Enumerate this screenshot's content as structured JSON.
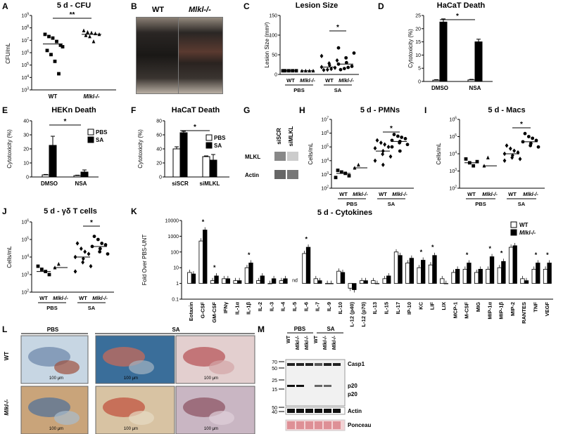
{
  "labels": {
    "A": "A",
    "B": "B",
    "C": "C",
    "D": "D",
    "E": "E",
    "F": "F",
    "G": "G",
    "H": "H",
    "I": "I",
    "J": "J",
    "K": "K",
    "L": "L",
    "M": "M"
  },
  "panelA": {
    "title": "5 d - CFU",
    "ylabel": "CFU/mL",
    "xticks": [
      "WT",
      "Mlkl-/-"
    ],
    "signif": "**",
    "yticks": [
      "10^3",
      "10^4",
      "10^5",
      "10^6",
      "10^7",
      "10^8",
      "10^9"
    ],
    "chart_data": {
      "type": "scatter",
      "yscale": "log",
      "ylim": [
        1000,
        1000000000
      ],
      "series": [
        {
          "name": "WT",
          "values": [
            30000000,
            20000000,
            15000000,
            8000000,
            4000000,
            1500000,
            700000,
            200000,
            20000,
            3000000
          ]
        },
        {
          "name": "Mlkl-/-",
          "values": [
            60000000,
            45000000,
            40000000,
            35000000,
            30000000,
            25000000,
            20000000,
            8000000
          ]
        }
      ],
      "medians": [
        5000000,
        30000000
      ]
    }
  },
  "panelB": {
    "labels": [
      "WT",
      "Mlkl-/-"
    ]
  },
  "panelC": {
    "title": "Lesion Size",
    "ylabel": "Lesion Size (mm²)",
    "yticks": [
      "0",
      "50",
      "100",
      "150"
    ],
    "xticks": [
      "WT",
      "Mlkl-/-",
      "WT",
      "Mlkl-/-"
    ],
    "groups": [
      "PBS",
      "SA"
    ],
    "signif": "*",
    "chart_data": {
      "type": "scatter",
      "ylim": [
        -10,
        150
      ],
      "series": [
        {
          "name": "PBS WT",
          "values": [
            0,
            0,
            0,
            0,
            0
          ]
        },
        {
          "name": "PBS Mlkl-/-",
          "values": [
            0,
            0,
            0,
            0
          ]
        },
        {
          "name": "SA WT",
          "values": [
            2,
            3,
            5,
            8,
            10,
            15,
            20,
            28,
            40
          ]
        },
        {
          "name": "SA Mlkl-/-",
          "values": [
            3,
            6,
            9,
            12,
            18,
            22,
            35,
            48,
            62
          ]
        }
      ]
    }
  },
  "panelD": {
    "title": "HaCaT Death",
    "ylabel": "Cytotoxicity (%)",
    "yticks": [
      "0",
      "5",
      "10",
      "15",
      "20",
      "25"
    ],
    "xticks": [
      "DMSO",
      "NSA"
    ],
    "signif": "*",
    "chart_data": {
      "type": "bar",
      "categories": [
        "DMSO",
        "NSA"
      ],
      "series": [
        {
          "name": "PBS",
          "values": [
            0.5,
            0.6
          ],
          "errors": [
            0.2,
            0.2
          ]
        },
        {
          "name": "SA",
          "values": [
            22.5,
            15
          ],
          "errors": [
            1.2,
            1.0
          ]
        }
      ],
      "ylim": [
        0,
        25
      ]
    }
  },
  "panelE": {
    "title": "HEKn Death",
    "ylabel": "Cytotoxicity (%)",
    "yticks": [
      "0",
      "10",
      "20",
      "30",
      "40"
    ],
    "xticks": [
      "DMSO",
      "NSA"
    ],
    "signif": "*",
    "legend": [
      "PBS",
      "SA"
    ],
    "chart_data": {
      "type": "bar",
      "categories": [
        "DMSO",
        "NSA"
      ],
      "series": [
        {
          "name": "PBS",
          "values": [
            1.5,
            1
          ],
          "errors": [
            0.3,
            0.3
          ]
        },
        {
          "name": "SA",
          "values": [
            22.5,
            3.5
          ],
          "errors": [
            6.5,
            1.5
          ]
        }
      ],
      "ylim": [
        0,
        40
      ]
    }
  },
  "panelF": {
    "title": "HaCaT Death",
    "ylabel": "Cytotoxicity (%)",
    "yticks": [
      "0",
      "20",
      "40",
      "60",
      "80"
    ],
    "xticks": [
      "siSCR",
      "siMLKL"
    ],
    "signif": "*",
    "legend": [
      "PBS",
      "SA"
    ],
    "chart_data": {
      "type": "bar",
      "categories": [
        "siSCR",
        "siMLKL"
      ],
      "series": [
        {
          "name": "PBS",
          "values": [
            40,
            29
          ],
          "errors": [
            3,
            1
          ]
        },
        {
          "name": "SA",
          "values": [
            63,
            24
          ],
          "errors": [
            2,
            8
          ]
        }
      ],
      "ylim": [
        0,
        80
      ]
    }
  },
  "panelG": {
    "cols": [
      "siSCR",
      "siMLKL"
    ],
    "rows": [
      "MLKL",
      "Actin"
    ]
  },
  "panelH": {
    "title": "5 d - PMNs",
    "ylabel": "Cells/mL",
    "yticks": [
      "10^2",
      "10^3",
      "10^4",
      "10^5",
      "10^6",
      "10^7"
    ],
    "xticks": [
      "WT",
      "Mlkl-/-",
      "WT",
      "Mlkl-/-"
    ],
    "groups": [
      "PBS",
      "SA"
    ],
    "signif": "*",
    "chart_data": {
      "type": "scatter",
      "yscale": "log",
      "ylim": [
        100,
        10000000
      ],
      "series": [
        {
          "name": "PBS WT",
          "values": [
            2000,
            1500,
            1200,
            800,
            600
          ]
        },
        {
          "name": "PBS Mlkl-/-",
          "values": [
            3000,
            5000
          ]
        },
        {
          "name": "SA WT",
          "values": [
            300000,
            200000,
            150000,
            100000,
            80000,
            50000,
            30000,
            20000,
            10000,
            5000
          ]
        },
        {
          "name": "SA Mlkl-/-",
          "values": [
            800000,
            600000,
            500000,
            400000,
            300000,
            250000,
            200000,
            150000,
            100000,
            50000
          ]
        }
      ]
    }
  },
  "panelI": {
    "title": "5 d - Macs",
    "ylabel": "Cells/mL",
    "yticks": [
      "10^2",
      "10^3",
      "10^4",
      "10^5",
      "10^6"
    ],
    "xticks": [
      "WT",
      "Mlkl-/-",
      "WT",
      "Mlkl-/-"
    ],
    "groups": [
      "PBS",
      "SA"
    ],
    "signif": "*",
    "chart_data": {
      "type": "scatter",
      "yscale": "log",
      "ylim": [
        100,
        1000000
      ],
      "series": [
        {
          "name": "PBS WT",
          "values": [
            5000,
            3000,
            2000,
            3500
          ]
        },
        {
          "name": "PBS Mlkl-/-",
          "values": [
            2000,
            6000
          ]
        },
        {
          "name": "SA WT",
          "values": [
            30000,
            20000,
            15000,
            12000,
            10000,
            8000,
            6000,
            5000,
            4000
          ]
        },
        {
          "name": "SA Mlkl-/-",
          "values": [
            150000,
            100000,
            80000,
            60000,
            50000,
            40000,
            30000,
            25000
          ]
        }
      ]
    }
  },
  "panelJ": {
    "title": "5 d - γδ T cells",
    "ylabel": "Cells/mL",
    "yticks": [
      "10^2",
      "10^3",
      "10^4",
      "10^5",
      "10^6"
    ],
    "xticks": [
      "WT",
      "Mlkl-/-",
      "WT",
      "Mlkl-/-"
    ],
    "groups": [
      "PBS",
      "SA"
    ],
    "signif": "*",
    "chart_data": {
      "type": "scatter",
      "yscale": "log",
      "ylim": [
        100,
        1000000
      ],
      "series": [
        {
          "name": "PBS WT",
          "values": [
            3000,
            2000,
            1500,
            1000
          ]
        },
        {
          "name": "PBS Mlkl-/-",
          "values": [
            2500,
            4000
          ]
        },
        {
          "name": "SA WT",
          "values": [
            60000,
            30000,
            20000,
            15000,
            10000,
            8000,
            5000,
            3000,
            1500
          ]
        },
        {
          "name": "SA Mlkl-/-",
          "values": [
            150000,
            100000,
            60000,
            50000,
            40000,
            30000,
            20000,
            15000
          ]
        }
      ]
    }
  },
  "panelK": {
    "title": "5 d - Cytokines",
    "ylabel": "Fold Over PBS-UNT",
    "legend": [
      "WT",
      "Mlkl-/-"
    ],
    "yticks": [
      "0.1",
      "1",
      "10",
      "100",
      "1000",
      "10000"
    ],
    "nd": "nd",
    "chart_data": {
      "type": "bar",
      "yscale": "log",
      "ylim": [
        0.1,
        10000
      ],
      "categories": [
        "Eotaxin",
        "G-CSF",
        "GM-CSF",
        "IFNγ",
        "IL-1α",
        "IL-1β",
        "IL-2",
        "IL-3",
        "IL-4",
        "IL-5",
        "IL-6",
        "IL-7",
        "IL-9",
        "IL-10",
        "IL-12 (p40)",
        "IL-12 (p70)",
        "IL-13",
        "IL-15",
        "IL-17",
        "IP-10",
        "KC",
        "LIF",
        "LIX",
        "MCP-1",
        "M-CSF",
        "MIG",
        "MIP-1α",
        "MIP-1β",
        "MIP-2",
        "RANTES",
        "TNF",
        "VEGF"
      ],
      "series": [
        {
          "name": "WT",
          "values": [
            5,
            500,
            1.5,
            2,
            1.5,
            10,
            1.5,
            1,
            1.5,
            null,
            80,
            2,
            1,
            6,
            0.5,
            1.5,
            1.5,
            2,
            100,
            20,
            10,
            15,
            2,
            5,
            8,
            5,
            8,
            10,
            200,
            2,
            8,
            8
          ]
        },
        {
          "name": "Mlkl-/-",
          "values": [
            4,
            2500,
            3,
            2,
            1.5,
            20,
            3,
            2,
            2,
            null,
            200,
            1.5,
            1,
            5,
            0.4,
            1.5,
            1,
            3,
            60,
            40,
            30,
            60,
            1,
            8,
            20,
            8,
            50,
            25,
            250,
            1.5,
            20,
            20
          ]
        }
      ],
      "signif": [
        1,
        2,
        5,
        10,
        20,
        21,
        24,
        26,
        27,
        30,
        31
      ]
    }
  },
  "panelL": {
    "cols": [
      "PBS",
      "SA"
    ],
    "rows": [
      "WT",
      "Mlkl-/-"
    ],
    "scale": "100 μm"
  },
  "panelM": {
    "groups": [
      "PBS",
      "SA"
    ],
    "lanes": [
      "WT",
      "Mlkl-/-",
      "Mlkl-/-",
      "WT",
      "Mlkl-/-",
      "Mlkl-/-"
    ],
    "mw": [
      "70",
      "50",
      "25",
      "15",
      "50",
      "40"
    ],
    "bands": [
      "Casp1",
      "p20",
      "p20",
      "Actin",
      "Ponceau"
    ]
  }
}
